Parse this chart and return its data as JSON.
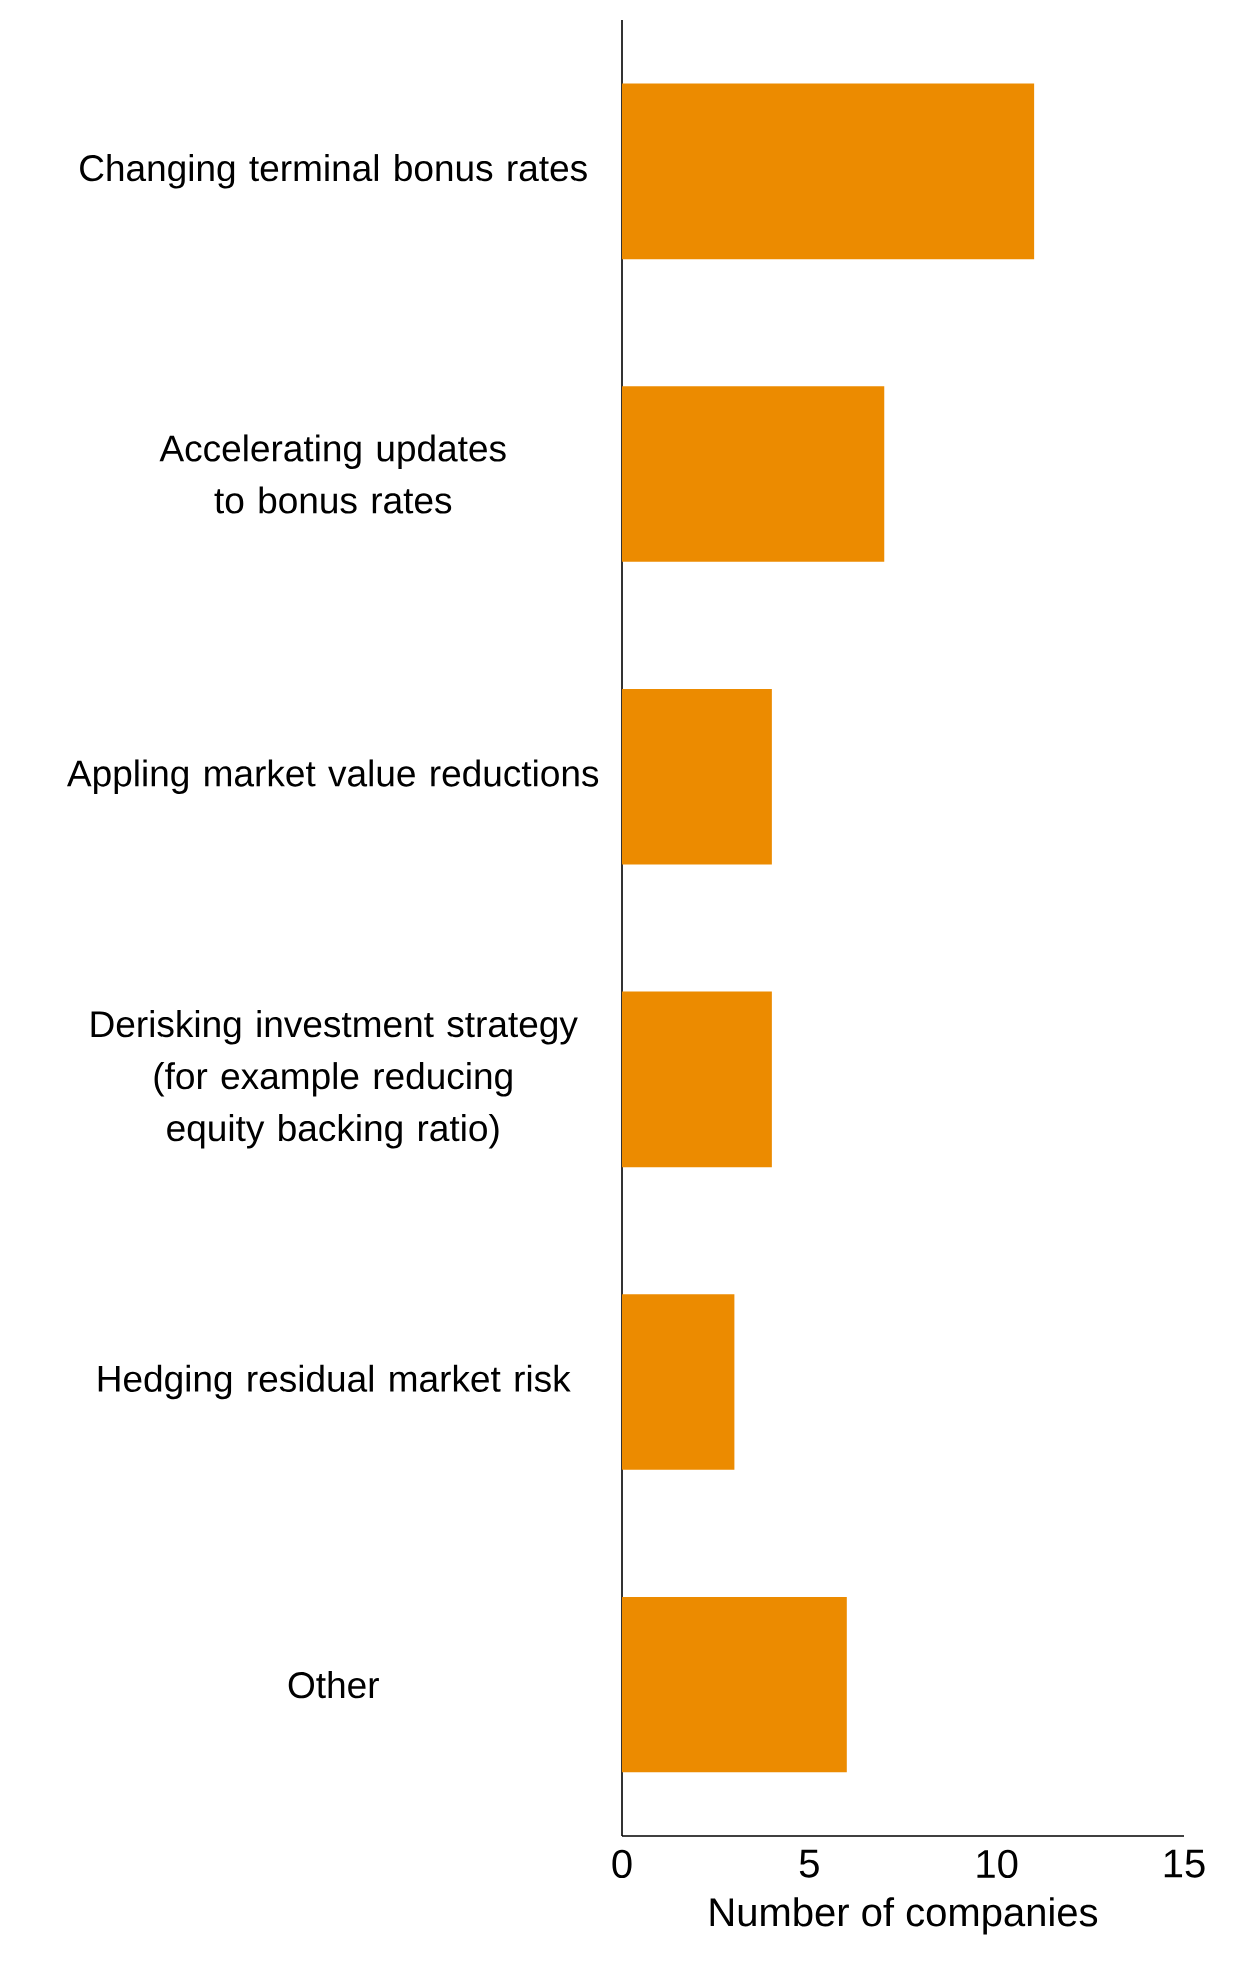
{
  "chart_data": {
    "type": "bar",
    "orientation": "horizontal",
    "xlabel": "Number of companies",
    "categories": [
      "Changing terminal bonus rates",
      "Accelerating updates to bonus rates",
      "Appling market value reductions",
      "Derisking investment strategy (for example reducing equity backing ratio)",
      "Hedging residual market risk",
      "Other"
    ],
    "values": [
      11,
      7,
      4,
      4,
      3,
      6
    ],
    "color": "#ec8b00",
    "xlim": [
      0,
      15
    ],
    "xticks": [
      0,
      5,
      10,
      15
    ]
  }
}
